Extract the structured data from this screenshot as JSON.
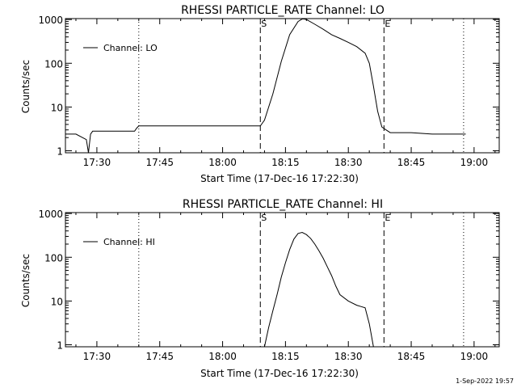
{
  "footer": {
    "timestamp": "1-Sep-2022 19:57"
  },
  "colors": {
    "background": "#ffffff",
    "foreground": "#000000"
  },
  "chart_data": [
    {
      "type": "line",
      "title": "RHESSI PARTICLE_RATE Channel: LO",
      "xlabel": "Start Time (17-Dec-16 17:22:30)",
      "ylabel": "Counts/sec",
      "yscale": "log",
      "xlim": [
        "17:22:30",
        "19:06:00"
      ],
      "ylim": [
        0.9,
        1050
      ],
      "x_ticks": [
        "17:30",
        "17:45",
        "18:00",
        "18:15",
        "18:30",
        "18:45",
        "19:00"
      ],
      "y_ticks": [
        "1",
        "10",
        "100",
        "1000"
      ],
      "legend": {
        "position": "top-left",
        "entries": [
          "Channel: LO"
        ]
      },
      "markers": [
        {
          "label": "",
          "time": "17:40:00",
          "style": "dotted"
        },
        {
          "label": "S",
          "time": "18:09:00",
          "style": "dashed"
        },
        {
          "label": "E",
          "time": "18:38:30",
          "style": "dashed"
        },
        {
          "label": "",
          "time": "18:57:30",
          "style": "dotted"
        }
      ],
      "series": [
        {
          "name": "Channel: LO",
          "x": [
            "17:22:30",
            "17:25:00",
            "17:27:30",
            "17:28:00",
            "17:28:30",
            "17:29:00",
            "17:33:00",
            "17:35:00",
            "17:37:00",
            "17:39:00",
            "17:39:30",
            "17:40:00",
            "17:45:00",
            "17:50:00",
            "17:55:00",
            "18:00:00",
            "18:05:00",
            "18:09:00",
            "18:10:00",
            "18:12:00",
            "18:14:00",
            "18:16:00",
            "18:18:00",
            "18:19:00",
            "18:19:30",
            "18:20:00",
            "18:22:00",
            "18:24:00",
            "18:26:00",
            "18:28:00",
            "18:30:00",
            "18:32:00",
            "18:34:00",
            "18:35:00",
            "18:36:00",
            "18:37:00",
            "18:38:00",
            "18:39:00",
            "18:40:00",
            "18:45:00",
            "18:50:00",
            "18:55:00",
            "18:58:00"
          ],
          "y": [
            2.4,
            2.4,
            1.8,
            0.9,
            2.4,
            2.8,
            2.8,
            2.8,
            2.8,
            2.8,
            3.3,
            3.7,
            3.7,
            3.7,
            3.7,
            3.7,
            3.7,
            3.7,
            5,
            20,
            110,
            450,
            900,
            1030,
            1030,
            1000,
            780,
            600,
            450,
            370,
            300,
            240,
            170,
            100,
            30,
            8,
            3.5,
            3,
            2.6,
            2.6,
            2.4,
            2.4,
            2.4
          ]
        }
      ]
    },
    {
      "type": "line",
      "title": "RHESSI PARTICLE_RATE Channel: HI",
      "xlabel": "Start Time (17-Dec-16 17:22:30)",
      "ylabel": "Counts/sec",
      "yscale": "log",
      "xlim": [
        "17:22:30",
        "19:06:00"
      ],
      "ylim": [
        0.9,
        1050
      ],
      "x_ticks": [
        "17:30",
        "17:45",
        "18:00",
        "18:15",
        "18:30",
        "18:45",
        "19:00"
      ],
      "y_ticks": [
        "1",
        "10",
        "100",
        "1000"
      ],
      "legend": {
        "position": "top-left",
        "entries": [
          "Channel: HI"
        ]
      },
      "markers": [
        {
          "label": "",
          "time": "17:40:00",
          "style": "dotted"
        },
        {
          "label": "S",
          "time": "18:09:00",
          "style": "dashed"
        },
        {
          "label": "E",
          "time": "18:38:30",
          "style": "dashed"
        },
        {
          "label": "",
          "time": "18:57:30",
          "style": "dotted"
        }
      ],
      "series": [
        {
          "name": "Channel: HI",
          "x": [
            "18:10:00",
            "18:11:00",
            "18:12:00",
            "18:13:00",
            "18:14:00",
            "18:15:00",
            "18:16:00",
            "18:17:00",
            "18:18:00",
            "18:19:00",
            "18:20:00",
            "18:21:00",
            "18:22:00",
            "18:23:00",
            "18:24:00",
            "18:25:00",
            "18:26:00",
            "18:27:00",
            "18:28:00",
            "18:30:00",
            "18:32:00",
            "18:33:00",
            "18:34:00",
            "18:35:00",
            "18:36:00"
          ],
          "y": [
            0.9,
            2.5,
            6,
            14,
            35,
            75,
            150,
            260,
            350,
            370,
            330,
            270,
            200,
            140,
            95,
            60,
            38,
            22,
            14,
            10,
            8,
            7.5,
            7,
            3,
            0.9
          ]
        }
      ]
    }
  ]
}
